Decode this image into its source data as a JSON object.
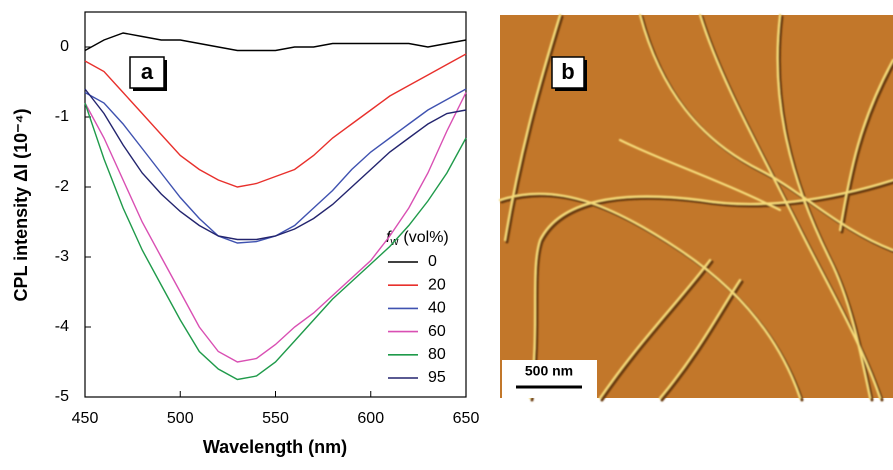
{
  "chart_data": {
    "type": "line",
    "x_label": "Wavelength (nm)",
    "y_label": "CPL intensity ΔI (10⁻⁴)",
    "panel_label": "a",
    "legend_title": {
      "symbol": "f",
      "subscript": "w",
      "text": "(vol%)"
    },
    "x": [
      450,
      460,
      470,
      480,
      490,
      500,
      510,
      520,
      530,
      540,
      550,
      560,
      570,
      580,
      590,
      600,
      610,
      620,
      630,
      640,
      650
    ],
    "xlim": [
      450,
      650
    ],
    "xticks": [
      450,
      500,
      550,
      600,
      650
    ],
    "ylim": [
      -5,
      0.5
    ],
    "yticks": [
      0,
      -1,
      -2,
      -3,
      -4,
      -5
    ],
    "series": [
      {
        "name": "0",
        "color": "#000000",
        "values": [
          -0.05,
          0.1,
          0.2,
          0.15,
          0.1,
          0.1,
          0.05,
          0.0,
          -0.05,
          -0.05,
          -0.05,
          0.0,
          0.0,
          0.05,
          0.05,
          0.05,
          0.05,
          0.05,
          0.0,
          0.05,
          0.1
        ]
      },
      {
        "name": "20",
        "color": "#e8302c",
        "values": [
          -0.2,
          -0.35,
          -0.65,
          -0.95,
          -1.25,
          -1.55,
          -1.75,
          -1.9,
          -2.0,
          -1.95,
          -1.85,
          -1.75,
          -1.55,
          -1.3,
          -1.1,
          -0.9,
          -0.7,
          -0.55,
          -0.4,
          -0.25,
          -0.1
        ]
      },
      {
        "name": "40",
        "color": "#3f52b0",
        "values": [
          -0.65,
          -0.8,
          -1.1,
          -1.45,
          -1.8,
          -2.15,
          -2.45,
          -2.7,
          -2.8,
          -2.78,
          -2.7,
          -2.55,
          -2.3,
          -2.05,
          -1.75,
          -1.5,
          -1.3,
          -1.1,
          -0.9,
          -0.75,
          -0.6
        ]
      },
      {
        "name": "60",
        "color": "#d94fb3",
        "values": [
          -0.8,
          -1.3,
          -1.9,
          -2.5,
          -3.0,
          -3.5,
          -4.0,
          -4.35,
          -4.5,
          -4.45,
          -4.25,
          -4.0,
          -3.8,
          -3.55,
          -3.3,
          -3.05,
          -2.7,
          -2.3,
          -1.8,
          -1.2,
          -0.65
        ]
      },
      {
        "name": "80",
        "color": "#1f9a4a",
        "values": [
          -0.8,
          -1.6,
          -2.3,
          -2.9,
          -3.4,
          -3.9,
          -4.35,
          -4.6,
          -4.75,
          -4.7,
          -4.5,
          -4.2,
          -3.9,
          -3.6,
          -3.35,
          -3.1,
          -2.85,
          -2.55,
          -2.2,
          -1.8,
          -1.3
        ]
      },
      {
        "name": "95",
        "color": "#23246e",
        "values": [
          -0.6,
          -0.95,
          -1.4,
          -1.8,
          -2.1,
          -2.35,
          -2.55,
          -2.7,
          -2.75,
          -2.75,
          -2.7,
          -2.6,
          -2.45,
          -2.25,
          -2.0,
          -1.75,
          -1.5,
          -1.3,
          -1.1,
          -0.95,
          -0.9
        ]
      }
    ]
  },
  "panel_b": {
    "label": "b",
    "scale_bar": "500 nm"
  }
}
